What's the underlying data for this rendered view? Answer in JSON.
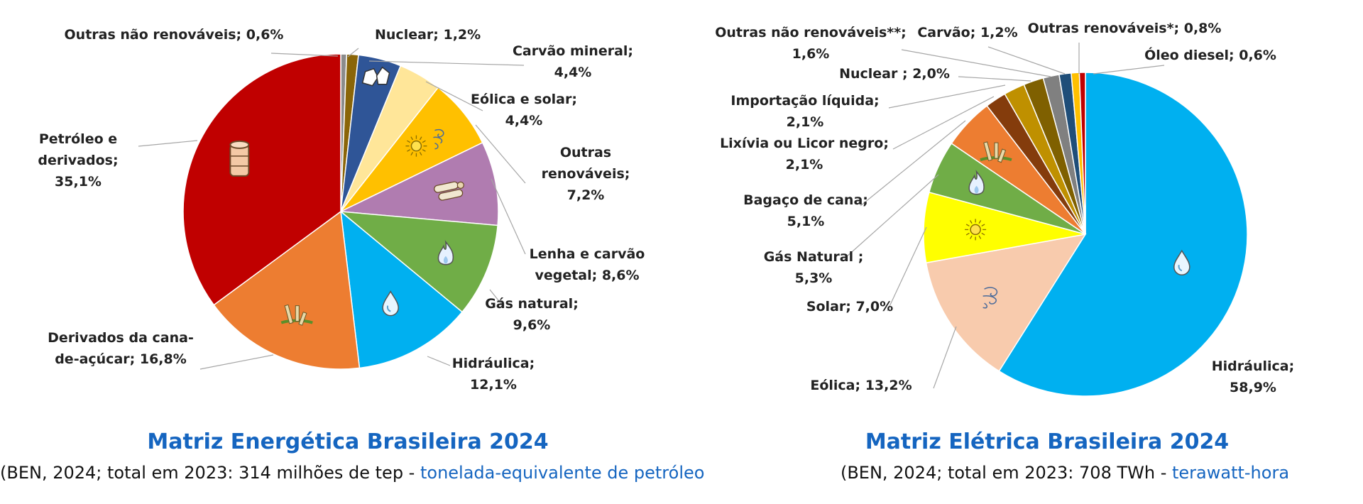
{
  "chart_data": [
    {
      "type": "pie",
      "title": "Matriz Energética Brasileira 2024",
      "subtitle": "(BEN, 2024; total em 2023: 314 milhões de tep - ",
      "subtitle_link": "tonelada-equivalente de petróleo",
      "slices": [
        {
          "label": "Outras não renováveis; 0,6%",
          "value": 0.6,
          "color": "#8c8c8c",
          "icon": ""
        },
        {
          "label": "Nuclear; 1,2%",
          "value": 1.2,
          "color": "#8a6508",
          "icon": ""
        },
        {
          "label": "Carvão mineral; 4,4%",
          "value": 4.4,
          "color": "#2f5597",
          "icon": "coal-icon"
        },
        {
          "label": "Eólica e solar; 4,4%",
          "value": 4.4,
          "color": "#ffe699",
          "icon": ""
        },
        {
          "label": "Outras renováveis; 7,2%",
          "value": 7.2,
          "color": "#ffc000",
          "icon": "sun-wind-icon"
        },
        {
          "label": "Lenha e carvão vegetal; 8,6%",
          "value": 8.6,
          "color": "#b07cb0",
          "icon": "firewood-icon"
        },
        {
          "label": "Gás natural; 9,6%",
          "value": 9.6,
          "color": "#70ad47",
          "icon": "gas-flame-icon"
        },
        {
          "label": "Hidráulica; 12,1%",
          "value": 12.1,
          "color": "#00b0f0",
          "icon": "water-drop-icon"
        },
        {
          "label": "Derivados da cana-de-açúcar; 16,8%",
          "value": 16.8,
          "color": "#ed7d31",
          "icon": "sugarcane-icon"
        },
        {
          "label": "Petróleo e derivados; 35,1%",
          "value": 35.1,
          "color": "#c00000",
          "icon": "oil-barrel-icon"
        }
      ]
    },
    {
      "type": "pie",
      "title": "Matriz Elétrica Brasileira 2024",
      "subtitle": "(BEN, 2024; total em 2023: 708 TWh - ",
      "subtitle_link": "terawatt-hora",
      "slices": [
        {
          "label": "Hidráulica; 58,9%",
          "value": 58.9,
          "color": "#00b0f0",
          "icon": "water-drop-icon"
        },
        {
          "label": "Eólica; 13,2%",
          "value": 13.2,
          "color": "#f8cbad",
          "icon": "wind-icon"
        },
        {
          "label": "Solar; 7,0%",
          "value": 7.0,
          "color": "#ffff00",
          "icon": "sun-icon"
        },
        {
          "label": "Gás Natural ; 5,3%",
          "value": 5.3,
          "color": "#70ad47",
          "icon": "gas-flame-icon"
        },
        {
          "label": "Bagaço de cana; 5,1%",
          "value": 5.1,
          "color": "#ed7d31",
          "icon": "sugarcane-icon"
        },
        {
          "label": "Lixívia ou Licor negro; 2,1%",
          "value": 2.1,
          "color": "#843c0c",
          "icon": ""
        },
        {
          "label": "Importação líquida; 2,1%",
          "value": 2.1,
          "color": "#bf9000",
          "icon": ""
        },
        {
          "label": "Nuclear ; 2,0%",
          "value": 2.0,
          "color": "#7f6000",
          "icon": ""
        },
        {
          "label": "Outras não renováveis**; 1,6%",
          "value": 1.6,
          "color": "#808080",
          "icon": ""
        },
        {
          "label": "Carvão; 1,2%",
          "value": 1.2,
          "color": "#1f4e79",
          "icon": ""
        },
        {
          "label": "Outras renováveis*; 0,8%",
          "value": 0.8,
          "color": "#ffc000",
          "icon": ""
        },
        {
          "label": "Óleo diesel; 0,6%",
          "value": 0.6,
          "color": "#c00000",
          "icon": ""
        }
      ]
    }
  ]
}
